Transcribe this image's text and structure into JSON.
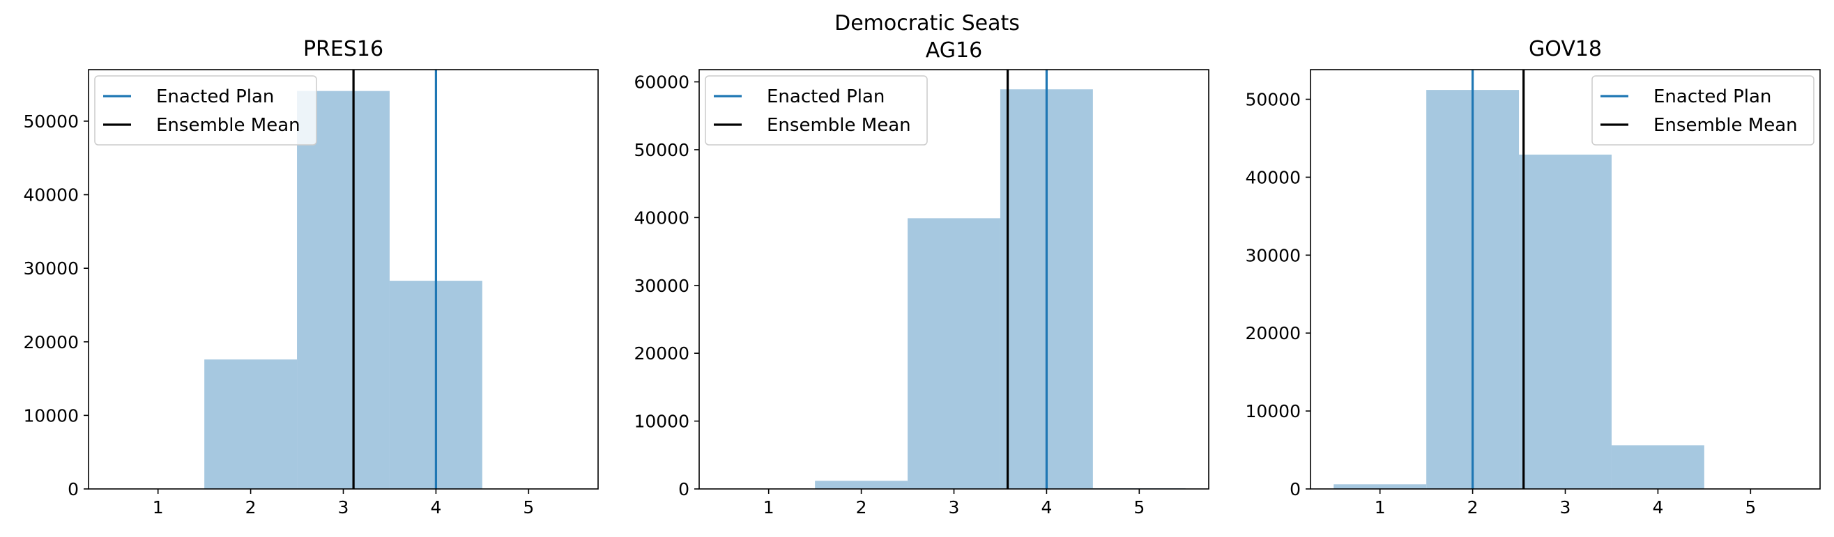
{
  "figure": {
    "suptitle": "Democratic Seats"
  },
  "colors": {
    "bar": "#a6c8e0",
    "enacted": "#1f77b4",
    "mean": "#000000"
  },
  "chart_data": [
    {
      "type": "bar",
      "title": "PRES16",
      "xlim": [
        0.25,
        5.75
      ],
      "ylim": [
        0,
        57000
      ],
      "xticks": [
        "1",
        "2",
        "3",
        "4",
        "5"
      ],
      "yticks": [
        "0",
        "10000",
        "20000",
        "30000",
        "40000",
        "50000"
      ],
      "categories": [
        1,
        2,
        3,
        4,
        5
      ],
      "values": [
        0,
        17600,
        54100,
        28300,
        0
      ],
      "enacted_plan": 4,
      "ensemble_mean": 3.11,
      "legend": {
        "entries": [
          "Enacted Plan",
          "Ensemble Mean"
        ],
        "position": "upper left"
      },
      "grid": false
    },
    {
      "type": "bar",
      "title": "AG16",
      "xlim": [
        0.25,
        5.75
      ],
      "ylim": [
        0,
        61800
      ],
      "xticks": [
        "1",
        "2",
        "3",
        "4",
        "5"
      ],
      "yticks": [
        "0",
        "10000",
        "20000",
        "30000",
        "40000",
        "50000",
        "60000"
      ],
      "categories": [
        1,
        2,
        3,
        4,
        5
      ],
      "values": [
        0,
        1200,
        39900,
        58900,
        100
      ],
      "enacted_plan": 4,
      "ensemble_mean": 3.58,
      "legend": {
        "entries": [
          "Enacted Plan",
          "Ensemble Mean"
        ],
        "position": "upper left"
      },
      "grid": false
    },
    {
      "type": "bar",
      "title": "GOV18",
      "xlim": [
        0.25,
        5.75
      ],
      "ylim": [
        0,
        53800
      ],
      "xticks": [
        "1",
        "2",
        "3",
        "4",
        "5"
      ],
      "yticks": [
        "0",
        "10000",
        "20000",
        "30000",
        "40000",
        "50000"
      ],
      "categories": [
        1,
        2,
        3,
        4,
        5
      ],
      "values": [
        600,
        51200,
        42900,
        5600,
        0
      ],
      "enacted_plan": 2,
      "ensemble_mean": 2.55,
      "legend": {
        "entries": [
          "Enacted Plan",
          "Ensemble Mean"
        ],
        "position": "upper right"
      },
      "grid": false
    }
  ]
}
